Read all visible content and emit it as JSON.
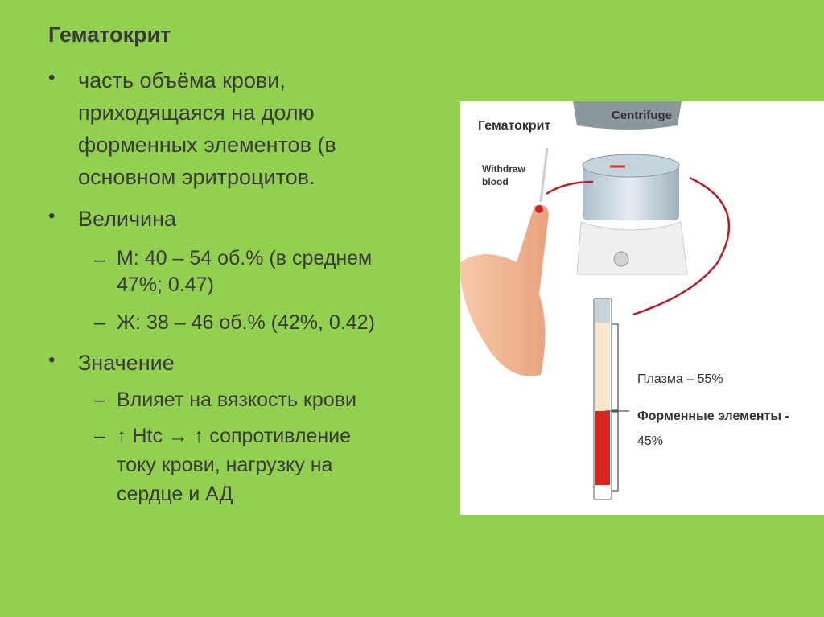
{
  "slide": {
    "title": "Гематокрит",
    "bullets": [
      {
        "lines": [
          "часть объёма крови,",
          "приходящаяся на долю",
          "форменных элементов (в",
          "основном эритроцитов."
        ]
      },
      {
        "lines": [
          "Величина"
        ],
        "sub": [
          {
            "lines": [
              "М:  40 – 54 об.% (в среднем",
              "47%; 0.47)"
            ]
          },
          {
            "lines": [
              "Ж: 38 – 46 об.% (42%, 0.42)"
            ]
          }
        ]
      },
      {
        "lines": [
          "Значение"
        ],
        "sub": [
          {
            "lines": [
              "Влияет на вязкость крови"
            ]
          },
          {
            "lines": [
              "↑ Htc → ↑ сопротивление",
              "току крови, нагрузку на",
              "сердце и АД"
            ]
          }
        ]
      }
    ],
    "bullet_symbol": "•",
    "dash_symbol": "–"
  },
  "figure": {
    "title": "Гематокрит",
    "centrifuge_label": "Centrifuge",
    "withdraw_label": [
      "Withdraw",
      "blood"
    ],
    "plasma_label": "Плазма – 55%",
    "cells_label": [
      "Форменные элементы -",
      "45%"
    ],
    "plasma_fraction": 0.55,
    "cells_fraction": 0.45
  },
  "colors": {
    "background": "#92D050",
    "text": "#3a3a3a",
    "blood": "#d9261c",
    "plasma": "#f7e6cc"
  }
}
